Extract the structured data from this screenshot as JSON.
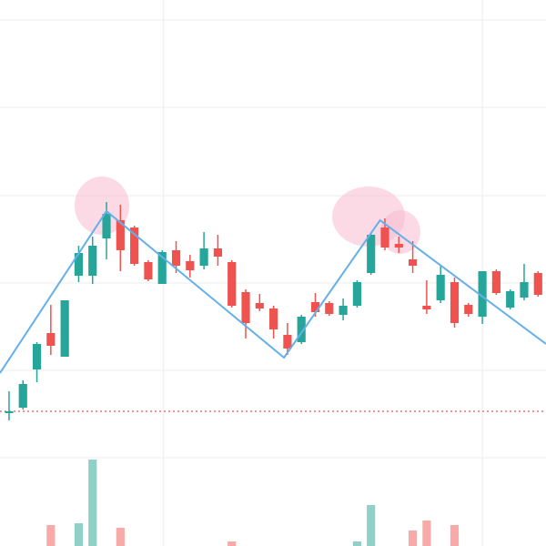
{
  "chart_data": {
    "type": "candlestick",
    "open": [
      146,
      152,
      194,
      234,
      208,
      297,
      297,
      338,
      358,
      350,
      312,
      288,
      325,
      313,
      308,
      327,
      312,
      279,
      267,
      261,
      232,
      224,
      268,
      267,
      254,
      264,
      300,
      350,
      332,
      315,
      264,
      270,
      290,
      265,
      252,
      302,
      262,
      273,
      300
    ],
    "close": [
      148,
      178,
      222,
      220,
      270,
      322,
      330,
      365,
      325,
      310,
      293,
      323,
      308,
      303,
      327,
      318,
      264,
      245,
      261,
      238,
      217,
      252,
      257,
      255,
      264,
      290,
      342,
      328,
      328,
      308,
      260,
      298,
      245,
      255,
      302,
      278,
      280,
      290,
      276
    ],
    "high": [
      170,
      182,
      224,
      265,
      270,
      330,
      340,
      378,
      375,
      352,
      314,
      325,
      335,
      320,
      345,
      342,
      314,
      282,
      277,
      264,
      245,
      254,
      278,
      269,
      272,
      292,
      344,
      360,
      340,
      335,
      292,
      308,
      295,
      267,
      302,
      304,
      282,
      310,
      302
    ],
    "low": [
      138,
      150,
      180,
      210,
      208,
      290,
      288,
      315,
      302,
      308,
      291,
      288,
      300,
      295,
      304,
      308,
      262,
      228,
      258,
      228,
      210,
      222,
      252,
      253,
      248,
      262,
      298,
      325,
      322,
      300,
      255,
      267,
      240,
      252,
      244,
      276,
      260,
      270,
      274
    ],
    "volume": [
      0,
      0,
      0,
      23,
      0,
      25,
      95,
      0,
      20,
      0,
      0,
      0,
      0,
      0,
      0,
      0,
      5,
      0,
      0,
      0,
      0,
      0,
      0,
      0,
      0,
      5,
      45,
      0,
      0,
      17,
      28,
      0,
      23,
      0,
      0,
      0,
      0,
      0,
      0
    ],
    "up_color": "#26a69a",
    "down_color": "#ef5350",
    "up_volume_color": "#8fd0c8",
    "down_volume_color": "#f7aaa8",
    "xlim": [
      -0.65,
      38.57
    ],
    "xticks": [
      11.1,
      34
    ],
    "ylim": [
      0,
      600
    ],
    "yticks": [
      97,
      193,
      289,
      385,
      482,
      578
    ],
    "volume_lim": [
      0,
      600
    ],
    "grid": true,
    "pattern_line": {
      "x": [
        -0.65,
        7,
        19.75,
        26.65,
        38.57
      ],
      "values": [
        190,
        368,
        207,
        358,
        222
      ],
      "color": "#64b0ea"
    },
    "reference_line": {
      "value": 148,
      "color": "#ef5350"
    }
  }
}
